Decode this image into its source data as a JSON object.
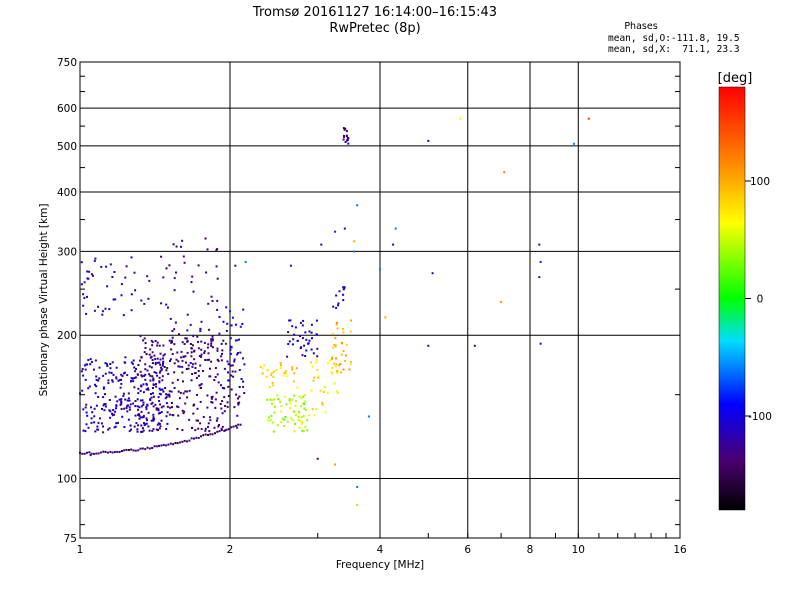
{
  "chart_data": {
    "type": "scatter",
    "title": "Tromsø 20161127 16:14:00–16:15:43",
    "subtitle": "RwPretec (8p)",
    "xlabel": "Frequency [MHz]",
    "ylabel": "Stationary phase Virtual Height [km]",
    "x_scale": "log",
    "y_scale": "log",
    "xlim": [
      1,
      16
    ],
    "ylim": [
      75,
      750
    ],
    "x_ticks": [
      1,
      2,
      4,
      6,
      8,
      10,
      16
    ],
    "x_tick_labels": [
      "1",
      "2",
      "4",
      "6",
      "8",
      "10",
      "16"
    ],
    "y_ticks": [
      75,
      100,
      200,
      300,
      400,
      500,
      600,
      750
    ],
    "y_tick_labels": [
      "75",
      "100",
      "200",
      "300",
      "400",
      "500",
      "600",
      "750"
    ],
    "grid": true,
    "stats": {
      "heading": "Phases",
      "line_o": "mean, sd,O:-111.8, 19.5",
      "line_x": "mean, sd,X:  71.1, 23.3"
    },
    "colorbar": {
      "label": "[deg]",
      "range": [
        -180,
        180
      ],
      "ticks": [
        100,
        0,
        -100
      ],
      "tick_labels": [
        "100",
        "0",
        "-100"
      ],
      "colormap": "rainbow"
    },
    "point_groups": [
      {
        "f": [
          1.0,
          2.1
        ],
        "h": [
          113,
          130
        ],
        "phase": -140,
        "kind": "trace",
        "n": 70,
        "jitter": 0.01
      },
      {
        "f": [
          1.0,
          1.5
        ],
        "h": [
          125,
          180
        ],
        "phase": -110,
        "kind": "cloud",
        "n": 260
      },
      {
        "f": [
          1.3,
          2.1
        ],
        "h": [
          125,
          200
        ],
        "phase": -135,
        "kind": "cloud",
        "n": 300
      },
      {
        "f": [
          1.0,
          1.4
        ],
        "h": [
          220,
          295
        ],
        "phase": -115,
        "kind": "cloud",
        "n": 45
      },
      {
        "f": [
          1.45,
          1.9
        ],
        "h": [
          170,
          320
        ],
        "phase": -130,
        "kind": "cloud",
        "n": 60
      },
      {
        "f": [
          1.9,
          2.15
        ],
        "h": [
          150,
          230
        ],
        "phase": -100,
        "kind": "cloud",
        "n": 35
      },
      {
        "f": [
          2.35,
          2.9
        ],
        "h": [
          125,
          150
        ],
        "phase": 40,
        "kind": "cloud",
        "n": 70
      },
      {
        "f": [
          2.3,
          2.8
        ],
        "h": [
          155,
          175
        ],
        "phase": 80,
        "kind": "cloud",
        "n": 30
      },
      {
        "f": [
          2.6,
          3.0
        ],
        "h": [
          180,
          215
        ],
        "phase": -110,
        "kind": "cloud",
        "n": 40
      },
      {
        "f": [
          2.9,
          3.3
        ],
        "h": [
          135,
          180
        ],
        "phase": 75,
        "kind": "cloud",
        "n": 30
      },
      {
        "f": [
          3.2,
          3.5
        ],
        "h": [
          165,
          215
        ],
        "phase": 95,
        "kind": "cloud",
        "n": 35
      },
      {
        "f": [
          3.2,
          3.4
        ],
        "h": [
          225,
          260
        ],
        "phase": -110,
        "kind": "cloud",
        "n": 12
      },
      {
        "f": [
          3.38,
          3.46
        ],
        "h": [
          505,
          545
        ],
        "phase": -130,
        "kind": "cloud",
        "n": 16
      }
    ],
    "points": [
      {
        "f": 1.05,
        "h": 112,
        "phase": -135
      },
      {
        "f": 2.05,
        "h": 280,
        "phase": -130
      },
      {
        "f": 2.15,
        "h": 285,
        "phase": -60
      },
      {
        "f": 2.65,
        "h": 280,
        "phase": -110
      },
      {
        "f": 3.05,
        "h": 310,
        "phase": -110
      },
      {
        "f": 3.25,
        "h": 330,
        "phase": -80
      },
      {
        "f": 3.4,
        "h": 335,
        "phase": -110
      },
      {
        "f": 3.55,
        "h": 315,
        "phase": 100
      },
      {
        "f": 3.6,
        "h": 375,
        "phase": -60
      },
      {
        "f": 3.55,
        "h": 300,
        "phase": -60
      },
      {
        "f": 3.25,
        "h": 107,
        "phase": 110
      },
      {
        "f": 3.8,
        "h": 135,
        "phase": -60
      },
      {
        "f": 3.6,
        "h": 96,
        "phase": -60
      },
      {
        "f": 3.6,
        "h": 88,
        "phase": 40
      },
      {
        "f": 3.0,
        "h": 110,
        "phase": -140
      },
      {
        "f": 4.0,
        "h": 275,
        "phase": -60
      },
      {
        "f": 4.3,
        "h": 335,
        "phase": -60
      },
      {
        "f": 4.25,
        "h": 310,
        "phase": -110
      },
      {
        "f": 4.1,
        "h": 218,
        "phase": 100
      },
      {
        "f": 5.0,
        "h": 512,
        "phase": -110
      },
      {
        "f": 5.1,
        "h": 270,
        "phase": -110
      },
      {
        "f": 5.0,
        "h": 190,
        "phase": -130
      },
      {
        "f": 5.8,
        "h": 570,
        "phase": 70
      },
      {
        "f": 6.2,
        "h": 190,
        "phase": -140
      },
      {
        "f": 7.0,
        "h": 235,
        "phase": 110
      },
      {
        "f": 7.1,
        "h": 440,
        "phase": 120
      },
      {
        "f": 8.35,
        "h": 310,
        "phase": -130
      },
      {
        "f": 8.4,
        "h": 285,
        "phase": -80
      },
      {
        "f": 8.35,
        "h": 265,
        "phase": -110
      },
      {
        "f": 8.4,
        "h": 192,
        "phase": -130
      },
      {
        "f": 9.8,
        "h": 505,
        "phase": -60
      },
      {
        "f": 10.5,
        "h": 570,
        "phase": 150
      }
    ]
  }
}
